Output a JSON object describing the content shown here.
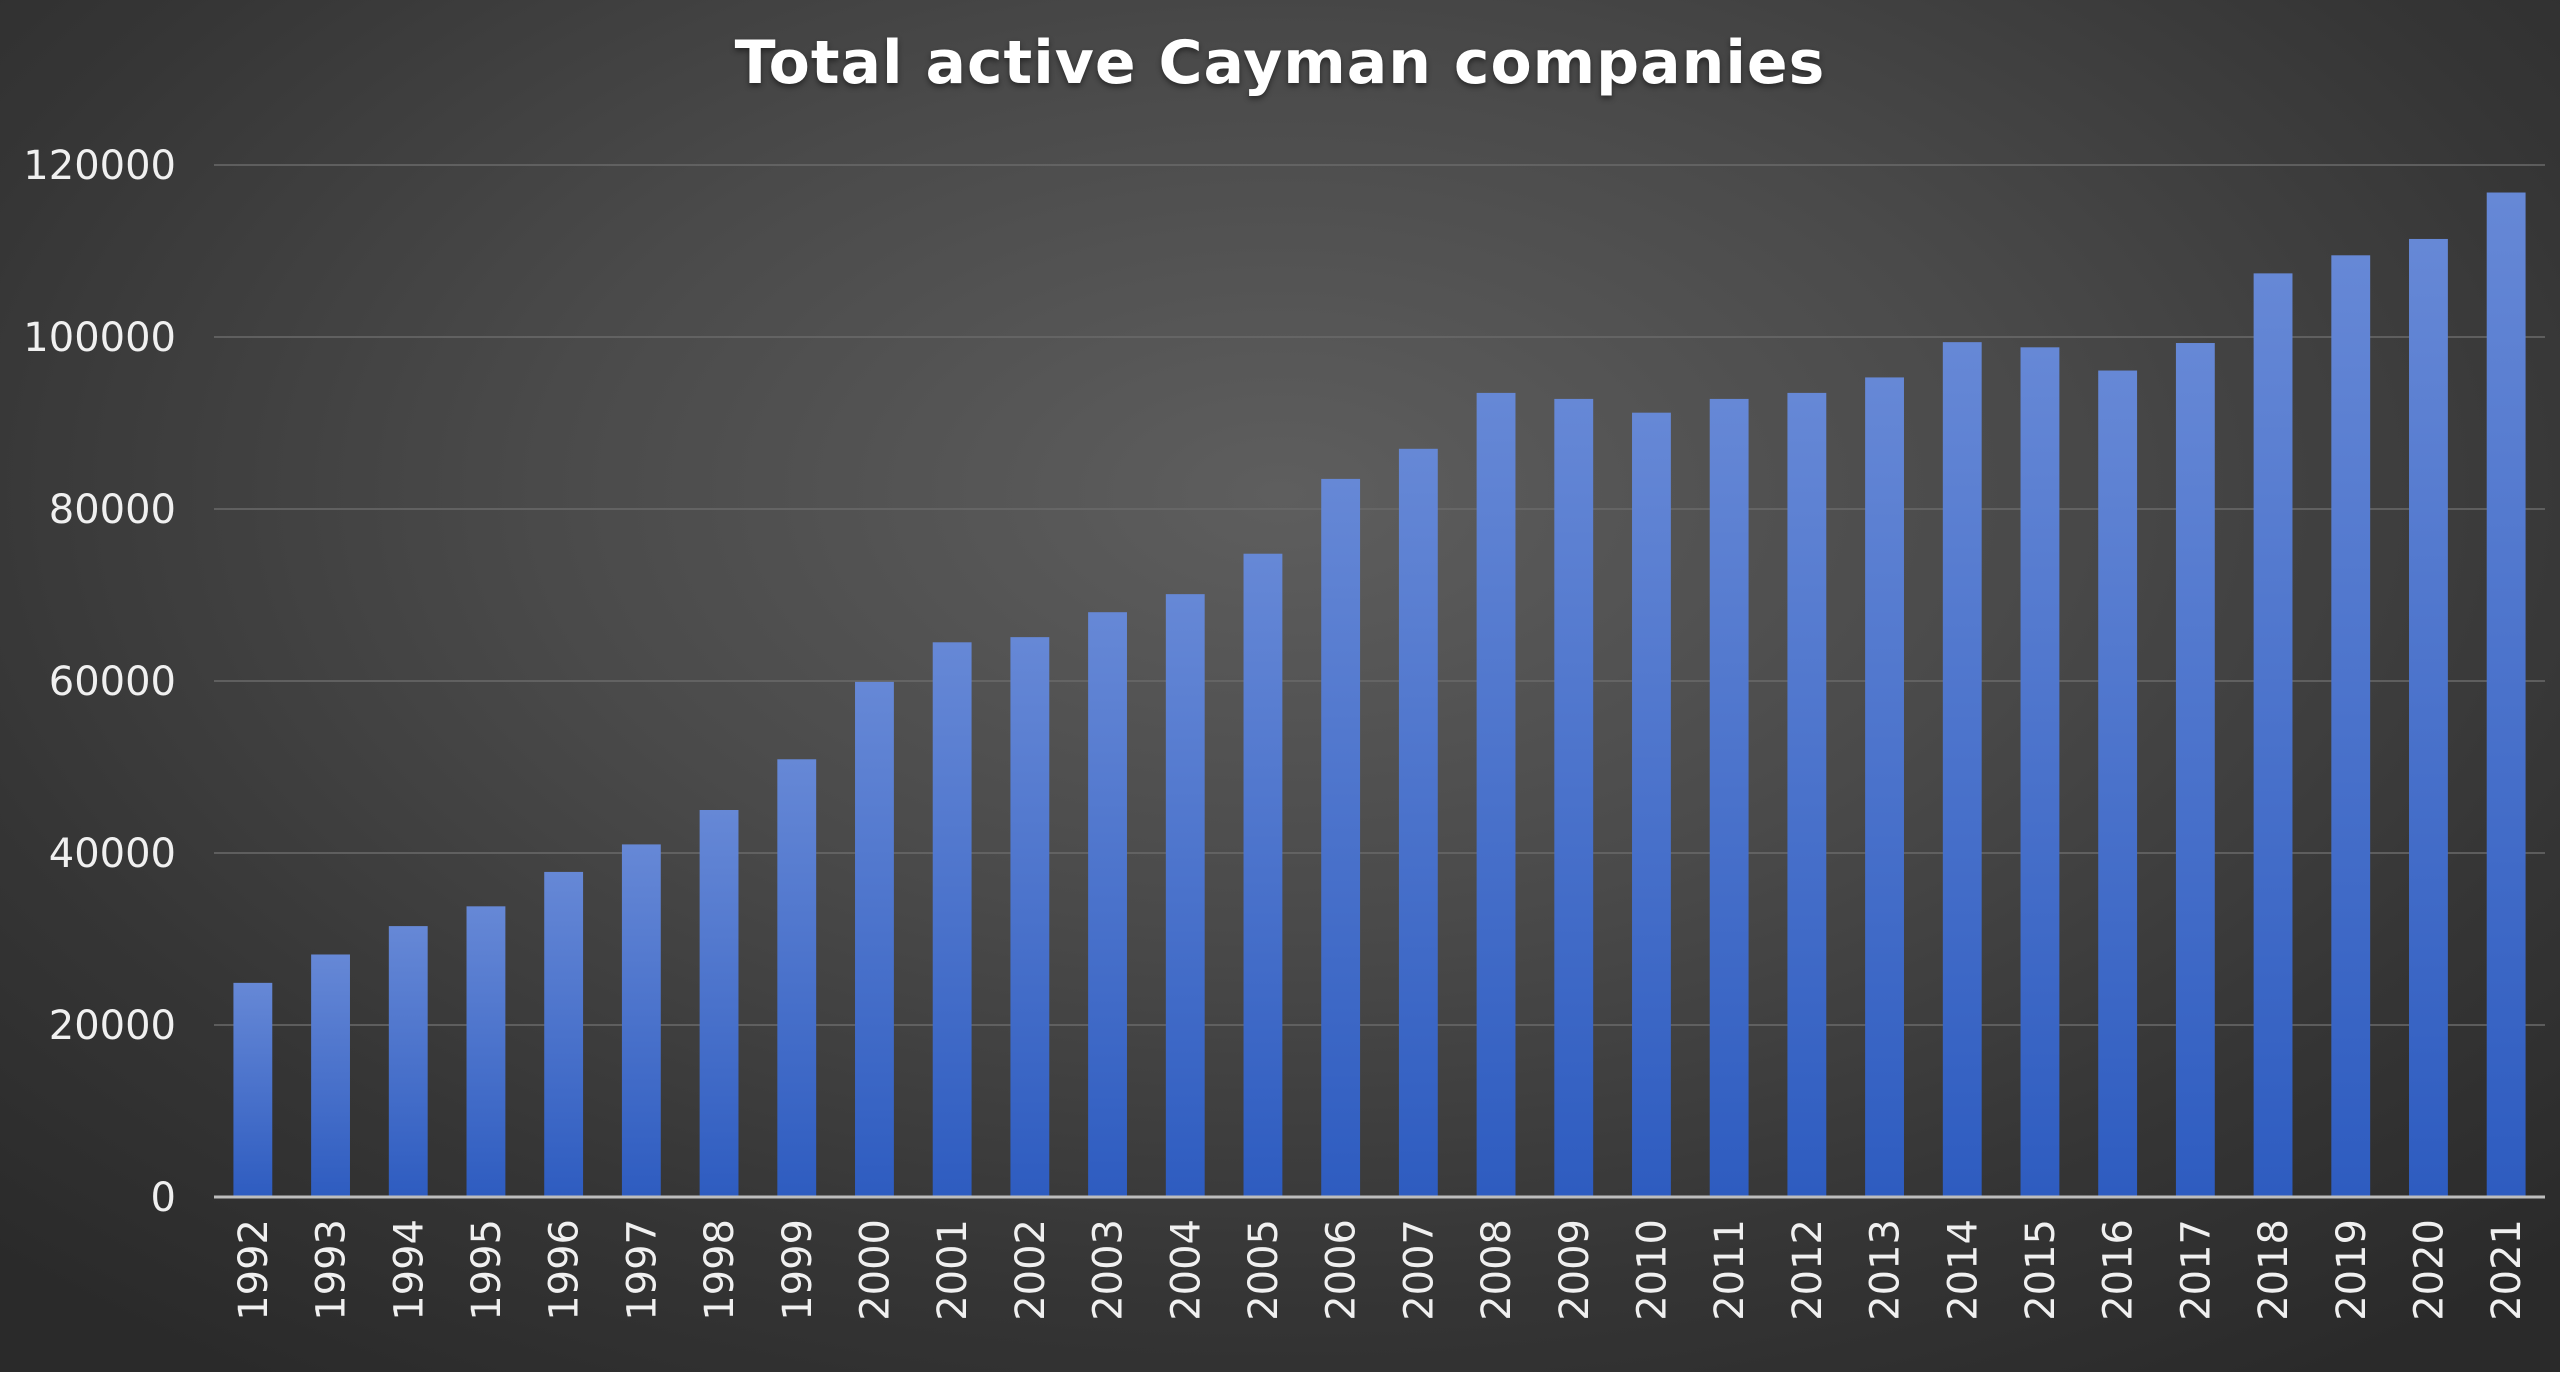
{
  "chart_data": {
    "type": "bar",
    "title": "Total active Cayman companies",
    "xlabel": "",
    "ylabel": "",
    "categories": [
      "1992",
      "1993",
      "1994",
      "1995",
      "1996",
      "1997",
      "1998",
      "1999",
      "2000",
      "2001",
      "2002",
      "2003",
      "2004",
      "2005",
      "2006",
      "2007",
      "2008",
      "2009",
      "2010",
      "2011",
      "2012",
      "2013",
      "2014",
      "2015",
      "2016",
      "2017",
      "2018",
      "2019",
      "2020",
      "2021"
    ],
    "values": [
      24900,
      28200,
      31500,
      33800,
      37800,
      41000,
      45000,
      50900,
      59900,
      64500,
      65100,
      68000,
      70100,
      74800,
      83500,
      87000,
      93500,
      92800,
      91200,
      92800,
      93500,
      95300,
      99400,
      98800,
      96100,
      99300,
      107400,
      109500,
      111400,
      116800
    ],
    "ylim": [
      0,
      120000
    ],
    "yticks": [
      "0",
      "20000",
      "40000",
      "60000",
      "80000",
      "100000",
      "120000"
    ],
    "grid": true,
    "legend": "none",
    "colors": {
      "bar_top": "#6688d6",
      "bar_bottom": "#2e5cc0",
      "gridline": "#6a6a6a",
      "axis": "#bdbdbd",
      "text": "#f0f0f0"
    }
  }
}
